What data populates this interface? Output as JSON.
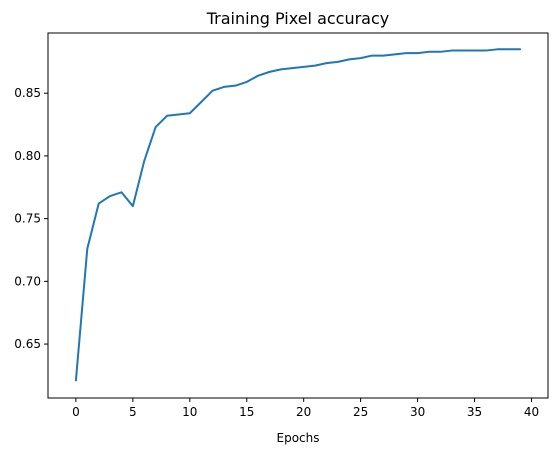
{
  "chart_data": {
    "type": "line",
    "title": "Training Pixel accuracy",
    "xlabel": "Epochs",
    "ylabel": "",
    "xlim": [
      -2.45,
      41.45
    ],
    "ylim": [
      0.607,
      0.898
    ],
    "xticks": [
      0,
      5,
      10,
      15,
      20,
      25,
      30,
      35,
      40
    ],
    "yticks": [
      0.65,
      0.7,
      0.75,
      0.8,
      0.85
    ],
    "ytick_labels": [
      "0.65",
      "0.70",
      "0.75",
      "0.80",
      "0.85"
    ],
    "xtick_labels": [
      "0",
      "5",
      "10",
      "15",
      "20",
      "25",
      "30",
      "35",
      "40"
    ],
    "grid": false,
    "series": [
      {
        "color": "#1f77b4",
        "x": [
          0,
          1,
          2,
          3,
          4,
          5,
          6,
          7,
          8,
          9,
          10,
          11,
          12,
          13,
          14,
          15,
          16,
          17,
          18,
          19,
          20,
          21,
          22,
          23,
          24,
          25,
          26,
          27,
          28,
          29,
          30,
          31,
          32,
          33,
          34,
          35,
          36,
          37,
          38,
          39
        ],
        "y": [
          0.621,
          0.726,
          0.762,
          0.768,
          0.771,
          0.76,
          0.796,
          0.823,
          0.832,
          0.833,
          0.834,
          0.843,
          0.852,
          0.855,
          0.856,
          0.859,
          0.864,
          0.867,
          0.869,
          0.87,
          0.871,
          0.872,
          0.874,
          0.875,
          0.877,
          0.878,
          0.88,
          0.88,
          0.881,
          0.882,
          0.882,
          0.883,
          0.883,
          0.884,
          0.884,
          0.884,
          0.884,
          0.885,
          0.885,
          0.885
        ]
      }
    ]
  }
}
